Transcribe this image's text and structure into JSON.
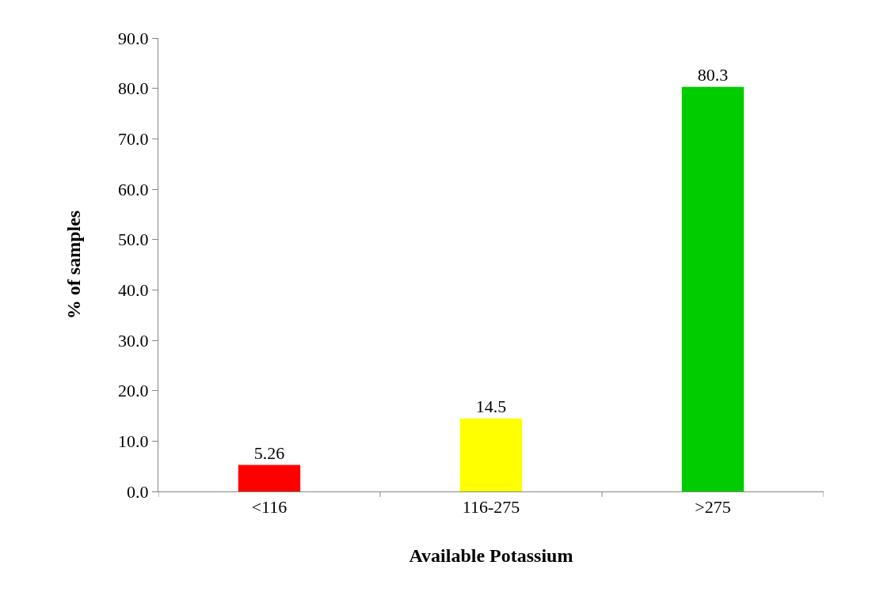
{
  "chart_data": {
    "type": "bar",
    "xlabel": "Available Potassium",
    "ylabel": "% of samples",
    "categories": [
      "<116",
      "116-275",
      ">275"
    ],
    "values": [
      5.26,
      14.5,
      80.3
    ],
    "colors": [
      "#ff0000",
      "#ffff00",
      "#00cc00"
    ],
    "ylim": [
      0,
      90
    ],
    "yticks": [
      {
        "value": 0,
        "label": "0.0"
      },
      {
        "value": 10,
        "label": "10.0"
      },
      {
        "value": 20,
        "label": "20.0"
      },
      {
        "value": 30,
        "label": "30.0"
      },
      {
        "value": 40,
        "label": "40.0"
      },
      {
        "value": 50,
        "label": "50.0"
      },
      {
        "value": 60,
        "label": "60.0"
      },
      {
        "value": 70,
        "label": "70.0"
      },
      {
        "value": 80,
        "label": "80.0"
      },
      {
        "value": 90,
        "label": "90.0"
      }
    ],
    "data_labels": true
  }
}
